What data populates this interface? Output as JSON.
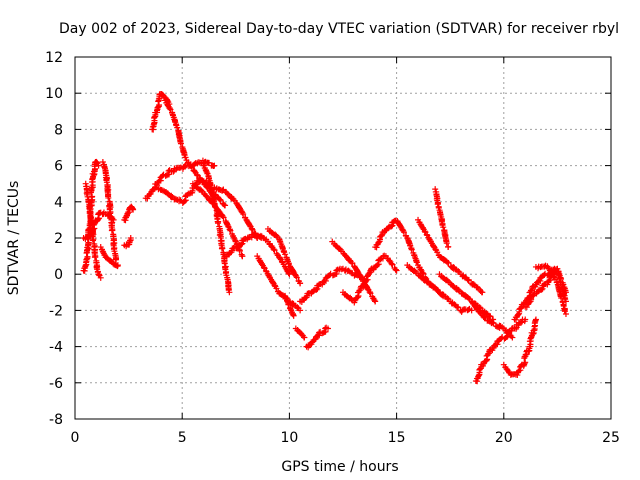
{
  "chart_data": {
    "type": "scatter",
    "title": "Day 002 of 2023, Sidereal Day-to-day VTEC variation (SDTVAR) for receiver rbyl",
    "xlabel": "GPS time / hours",
    "ylabel": "SDTVAR / TECUs",
    "xlim": [
      0,
      25
    ],
    "ylim": [
      -8,
      12
    ],
    "xticks": [
      "0",
      "5",
      "10",
      "15",
      "20",
      "25"
    ],
    "yticks": [
      "-8",
      "-6",
      "-4",
      "-2",
      "0",
      "2",
      "4",
      "6",
      "8",
      "10",
      "12"
    ],
    "grid": true,
    "marker": "plus",
    "color": "#ff0000",
    "series": [
      {
        "name": "s1",
        "x": [
          0.4,
          0.5,
          0.6,
          0.7,
          0.8,
          0.9,
          1.0,
          1.1
        ],
        "y": [
          0.2,
          0.6,
          1.5,
          3.0,
          4.8,
          5.9,
          6.2,
          6.0
        ]
      },
      {
        "name": "s2",
        "x": [
          0.4,
          0.6,
          0.8,
          1.0,
          1.2,
          1.5,
          1.8
        ],
        "y": [
          2.0,
          2.1,
          2.3,
          3.0,
          3.4,
          3.3,
          3.0
        ]
      },
      {
        "name": "s3",
        "x": [
          0.5,
          0.6,
          0.7,
          0.8,
          0.9,
          1.0,
          1.1,
          1.2
        ],
        "y": [
          5.0,
          4.2,
          3.5,
          2.5,
          1.5,
          0.5,
          0.0,
          -0.2
        ]
      },
      {
        "name": "s4",
        "x": [
          1.3,
          1.4,
          1.5,
          1.6,
          1.7,
          1.8,
          1.9
        ],
        "y": [
          6.2,
          5.8,
          5.0,
          4.0,
          3.0,
          1.8,
          0.8
        ]
      },
      {
        "name": "s5",
        "x": [
          1.2,
          1.4,
          1.6,
          1.8,
          2.0
        ],
        "y": [
          1.5,
          1.0,
          0.8,
          0.6,
          0.5
        ]
      },
      {
        "name": "s6",
        "x": [
          2.3,
          2.4,
          2.5,
          2.6,
          2.7
        ],
        "y": [
          3.0,
          3.3,
          3.5,
          3.8,
          3.6
        ]
      },
      {
        "name": "s7",
        "x": [
          2.3,
          2.5,
          2.6
        ],
        "y": [
          1.6,
          1.7,
          2.0
        ]
      },
      {
        "name": "s8",
        "x": [
          3.3,
          3.5,
          3.8,
          4.2,
          4.5,
          5.0,
          5.5,
          6.0,
          6.5
        ],
        "y": [
          4.2,
          4.5,
          5.0,
          5.5,
          5.7,
          5.9,
          6.0,
          6.2,
          6.0
        ]
      },
      {
        "name": "s9",
        "x": [
          3.6,
          3.8,
          4.0,
          4.2,
          4.4
        ],
        "y": [
          8.0,
          9.0,
          10.0,
          9.8,
          9.4
        ]
      },
      {
        "name": "s10",
        "x": [
          4.2,
          4.5,
          4.8,
          5.0,
          5.2,
          5.5,
          5.8,
          6.0,
          6.3,
          6.5
        ],
        "y": [
          9.6,
          9.0,
          8.0,
          7.0,
          6.3,
          5.8,
          5.3,
          5.0,
          4.6,
          4.2
        ]
      },
      {
        "name": "s11",
        "x": [
          3.8,
          4.2,
          4.6,
          5.0,
          5.4,
          5.8,
          6.2,
          6.6,
          7.0
        ],
        "y": [
          4.8,
          4.6,
          4.2,
          4.0,
          4.5,
          5.2,
          5.0,
          4.3,
          3.8
        ]
      },
      {
        "name": "s12",
        "x": [
          6.0,
          6.2,
          6.4,
          6.6,
          6.8,
          7.0,
          7.2
        ],
        "y": [
          6.0,
          5.5,
          4.5,
          3.5,
          2.0,
          0.5,
          -1.0
        ]
      },
      {
        "name": "s13",
        "x": [
          5.5,
          6.0,
          6.5,
          7.0,
          7.5,
          7.8
        ],
        "y": [
          5.0,
          4.5,
          3.8,
          3.0,
          1.8,
          1.0
        ]
      },
      {
        "name": "s14",
        "x": [
          6.5,
          7.0,
          7.5,
          8.0,
          8.5
        ],
        "y": [
          4.8,
          4.6,
          4.0,
          3.0,
          2.0
        ]
      },
      {
        "name": "s15",
        "x": [
          7.0,
          7.5,
          8.0,
          8.5,
          9.0,
          9.5,
          10.0
        ],
        "y": [
          1.0,
          1.5,
          2.0,
          2.2,
          1.8,
          1.0,
          0.0
        ]
      },
      {
        "name": "s16",
        "x": [
          8.5,
          9.0,
          9.5,
          10.0,
          10.5
        ],
        "y": [
          1.0,
          0.0,
          -1.0,
          -1.5,
          -2.0
        ]
      },
      {
        "name": "s17",
        "x": [
          9.0,
          9.5,
          10.0,
          10.5
        ],
        "y": [
          2.5,
          2.0,
          0.5,
          -0.5
        ]
      },
      {
        "name": "s18",
        "x": [
          9.8,
          10.0,
          10.2
        ],
        "y": [
          -1.2,
          -1.8,
          -2.3
        ]
      },
      {
        "name": "s19",
        "x": [
          10.3,
          10.5,
          10.7
        ],
        "y": [
          -3.0,
          -3.2,
          -3.5
        ]
      },
      {
        "name": "s20",
        "x": [
          10.8,
          11.0,
          11.2,
          11.5,
          11.8
        ],
        "y": [
          -4.0,
          -3.8,
          -3.5,
          -3.2,
          -3.0
        ]
      },
      {
        "name": "s21",
        "x": [
          10.5,
          11.0,
          11.5,
          12.0,
          12.5,
          13.0,
          13.5
        ],
        "y": [
          -1.5,
          -1.0,
          -0.5,
          0.0,
          0.3,
          0.0,
          -0.3
        ]
      },
      {
        "name": "s22",
        "x": [
          12.0,
          12.5,
          13.0,
          13.5,
          14.0
        ],
        "y": [
          1.8,
          1.2,
          0.5,
          -0.5,
          -1.5
        ]
      },
      {
        "name": "s23",
        "x": [
          12.5,
          13.0,
          13.5,
          14.0,
          14.5,
          15.0
        ],
        "y": [
          -1.0,
          -1.5,
          -0.5,
          0.5,
          1.0,
          0.2
        ]
      },
      {
        "name": "s24",
        "x": [
          14.0,
          14.5,
          15.0,
          15.5,
          16.0,
          16.5,
          17.0
        ],
        "y": [
          1.5,
          2.5,
          3.0,
          2.0,
          0.5,
          -0.5,
          -1.0
        ]
      },
      {
        "name": "s25",
        "x": [
          15.5,
          16.0,
          16.5,
          17.0,
          17.5,
          18.0,
          18.5
        ],
        "y": [
          0.5,
          0.0,
          -0.5,
          -1.0,
          -1.5,
          -2.0,
          -2.0
        ]
      },
      {
        "name": "s26",
        "x": [
          16.0,
          16.5,
          17.0,
          17.5,
          18.0,
          18.5,
          19.0
        ],
        "y": [
          3.0,
          2.0,
          1.0,
          0.5,
          0.0,
          -0.5,
          -1.0
        ]
      },
      {
        "name": "s27",
        "x": [
          16.8,
          17.0,
          17.2,
          17.4
        ],
        "y": [
          4.7,
          3.5,
          2.5,
          1.5
        ]
      },
      {
        "name": "s28",
        "x": [
          17.0,
          17.5,
          18.0,
          18.5,
          19.0,
          19.5
        ],
        "y": [
          0.0,
          -0.5,
          -1.0,
          -1.5,
          -2.0,
          -2.5
        ]
      },
      {
        "name": "s29",
        "x": [
          18.5,
          18.8,
          19.2,
          19.6,
          20.0,
          20.4
        ],
        "y": [
          -1.5,
          -2.0,
          -2.5,
          -2.8,
          -3.0,
          -3.5
        ]
      },
      {
        "name": "s30",
        "x": [
          18.7,
          19.0,
          19.5,
          20.0,
          20.5,
          21.0
        ],
        "y": [
          -5.9,
          -5.0,
          -4.0,
          -3.5,
          -3.0,
          -2.5
        ]
      },
      {
        "name": "s31",
        "x": [
          20.0,
          20.3,
          20.6,
          20.9,
          21.2,
          21.5
        ],
        "y": [
          -5.0,
          -5.5,
          -5.5,
          -5.0,
          -4.0,
          -2.5
        ]
      },
      {
        "name": "s32",
        "x": [
          20.5,
          21.0,
          21.5,
          22.0,
          22.5,
          22.9
        ],
        "y": [
          -2.5,
          -1.5,
          -0.5,
          0.0,
          0.3,
          -1.0
        ]
      },
      {
        "name": "s33",
        "x": [
          21.0,
          21.5,
          22.0,
          22.5,
          22.9
        ],
        "y": [
          -1.8,
          -1.0,
          -0.5,
          0.2,
          -1.5
        ]
      },
      {
        "name": "s34",
        "x": [
          21.5,
          22.0,
          22.5,
          22.9
        ],
        "y": [
          0.4,
          0.5,
          -0.5,
          -2.2
        ]
      }
    ]
  }
}
